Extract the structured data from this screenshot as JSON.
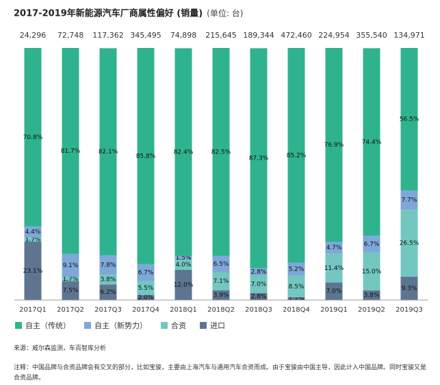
{
  "chart_data": {
    "type": "stacked_bar_100",
    "title": "2017-2019年新能源汽车厂商属性偏好 (销量)",
    "subtitle": "(单位: 台)",
    "categories": [
      "2017Q1",
      "2017Q2",
      "2017Q3",
      "2017Q4",
      "2018Q1",
      "2018Q2",
      "2018Q3",
      "2018Q4",
      "2019Q1",
      "2019Q2",
      "2019Q3"
    ],
    "totals": [
      24296,
      72748,
      117362,
      345495,
      74898,
      215645,
      189344,
      472460,
      224954,
      355540,
      134971
    ],
    "totals_labels": [
      "24,296",
      "72,748",
      "117,362",
      "345,495",
      "74,898",
      "215,645",
      "189,344",
      "472,460",
      "224,954",
      "355,540",
      "134,971"
    ],
    "ylim": [
      0,
      100
    ],
    "series": [
      {
        "name": "进口",
        "color": "#5d7591",
        "values": [
          23.1,
          7.5,
          6.2,
          2,
          12,
          3.9,
          2.8,
          1.1,
          7,
          3.8,
          9.3
        ],
        "value_labels": [
          "23.1%",
          "7.5%",
          "6.2%",
          "2.0%",
          "12.0%",
          "3.9%",
          "2.8%",
          "1.1%",
          "7.0%",
          "3.8%",
          "9.3%"
        ]
      },
      {
        "name": "合资",
        "color": "#72c7c0",
        "values": [
          1.7,
          1.7,
          3.8,
          5.5,
          4,
          7.1,
          7,
          8.5,
          11.4,
          15,
          26.5
        ],
        "value_labels": [
          "1.7%",
          "1.7%",
          "3.8%",
          "5.5%",
          "4.0%",
          "7.1%",
          "7.0%",
          "8.5%",
          "11.4%",
          "15.0%",
          "26.5%"
        ]
      },
      {
        "name": "自主（新势力）",
        "color": "#7ea8d8",
        "values": [
          4.4,
          9.1,
          7.8,
          6.7,
          1.5,
          6.5,
          2.8,
          5.2,
          4.7,
          6.7,
          7.7
        ],
        "value_labels": [
          "4.4%",
          "9.1%",
          "7.8%",
          "6.7%",
          "1.5%",
          "6.5%",
          "2.8%",
          "5.2%",
          "4.7%",
          "6.7%",
          "7.7%"
        ]
      },
      {
        "name": "自主（传统）",
        "color": "#2fb38e",
        "values": [
          70.8,
          81.7,
          82.1,
          85.8,
          82.4,
          82.5,
          87.3,
          85.2,
          76.9,
          74.4,
          56.5
        ],
        "value_labels": [
          "70.8%",
          "81.7%",
          "82.1%",
          "85.8%",
          "82.4%",
          "82.5%",
          "87.3%",
          "85.2%",
          "76.9%",
          "74.4%",
          "56.5%"
        ]
      }
    ],
    "legend_order": [
      3,
      2,
      1,
      0
    ],
    "source": "来源：威尔森监测，车百智库分析",
    "note": "注释：中国品牌与合资品牌会有交叉的部分，比如宝骏，主要由上海汽车与通用汽车合资而成。由于宝骏由中国主导，因此计入中国品牌。同时宝骏又是合资品牌。"
  }
}
